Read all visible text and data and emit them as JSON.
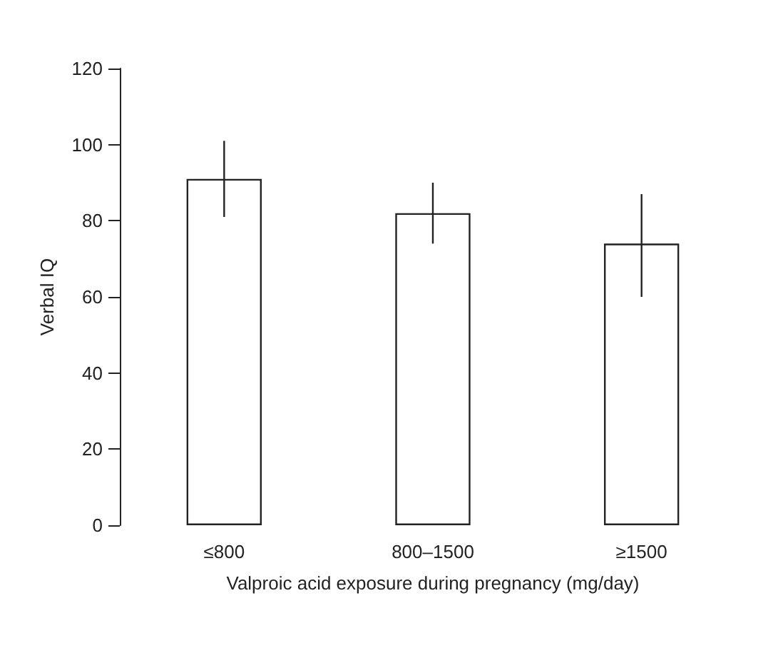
{
  "chart_data": {
    "type": "bar",
    "xlabel": "Valproic acid exposure during pregnancy (mg/day)",
    "ylabel": "Verbal IQ",
    "categories": [
      "≤800",
      "800–1500",
      "≥1500"
    ],
    "values": [
      91,
      82,
      74
    ],
    "errors": [
      [
        81,
        101
      ],
      [
        74,
        90
      ],
      [
        60,
        87
      ]
    ],
    "color": "#ffffff",
    "ylim": [
      0,
      120
    ],
    "yticks": [
      0,
      20,
      40,
      60,
      80,
      100,
      120
    ],
    "grid": false
  }
}
